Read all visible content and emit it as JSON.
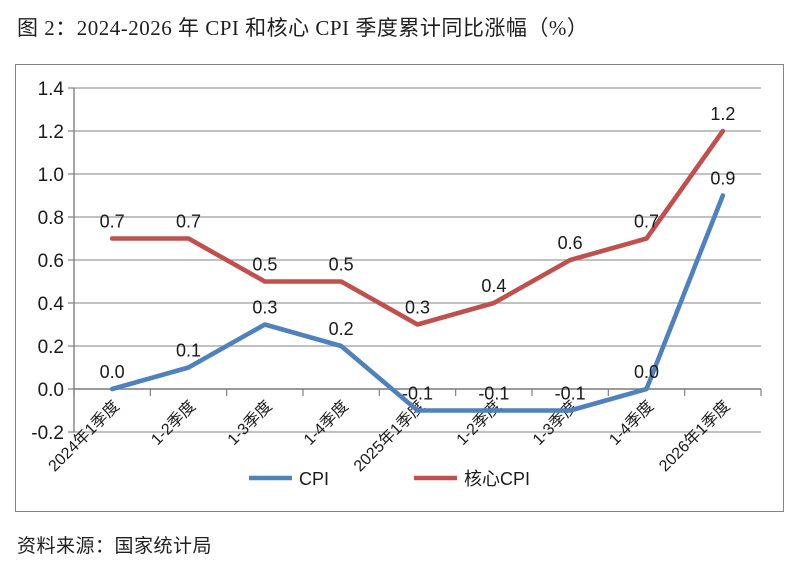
{
  "page": {
    "title": "图 2：2024-2026 年 CPI 和核心 CPI 季度累计同比涨幅（%）",
    "source": "资料来源：国家统计局"
  },
  "chart_data": {
    "type": "line",
    "title": "2024-2026 年 CPI 和核心 CPI 季度累计同比涨幅（%）",
    "categories": [
      "2024年1季度",
      "1-2季度",
      "1-3季度",
      "1-4季度",
      "2025年1季度",
      "1-2季度",
      "1-3季度",
      "1-4季度",
      "2026年1季度"
    ],
    "series": [
      {
        "key": "cpi",
        "name": "CPI",
        "color": "#4F81BD",
        "values": [
          0.0,
          0.1,
          0.3,
          0.2,
          -0.1,
          -0.1,
          -0.1,
          0.0,
          0.9
        ]
      },
      {
        "key": "core-cpi",
        "name": "核心CPI",
        "color": "#C0504D",
        "values": [
          0.7,
          0.7,
          0.5,
          0.5,
          0.3,
          0.4,
          0.6,
          0.7,
          1.2
        ]
      }
    ],
    "xlabel": "",
    "ylabel": "",
    "ylim": [
      -0.2,
      1.4
    ],
    "ytick_step": 0.2,
    "grid": true,
    "data_labels": true,
    "legend_position": "bottom",
    "grid_color": "#9c9c9c",
    "axis_color": "#808080",
    "label_color": "#1a1a1a"
  }
}
